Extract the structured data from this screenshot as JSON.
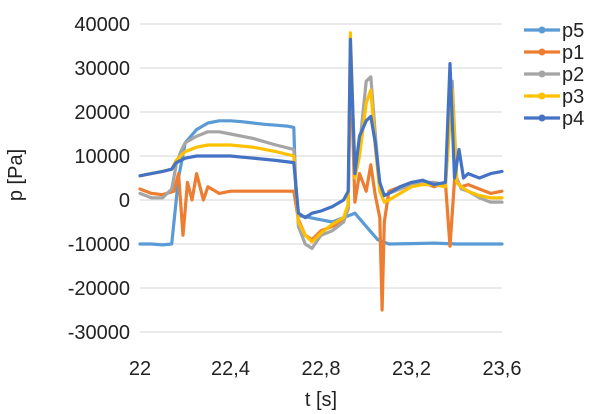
{
  "chart_data": {
    "type": "line",
    "title": "",
    "xlabel": "t [s]",
    "ylabel": "p [Pa]",
    "xlim": [
      22,
      23.6
    ],
    "ylim": [
      -30000,
      40000
    ],
    "xticks": [
      22,
      22.4,
      22.8,
      23.2,
      23.6
    ],
    "xtick_labels": [
      "22",
      "22,4",
      "22,8",
      "23,2",
      "23,6"
    ],
    "yticks": [
      -30000,
      -20000,
      -10000,
      0,
      10000,
      20000,
      30000,
      40000
    ],
    "ytick_labels": [
      "-30000",
      "-20000",
      "-10000",
      "0",
      "10000",
      "20000",
      "30000",
      "40000"
    ],
    "grid": "horizontal",
    "legend_position": "right",
    "series": [
      {
        "name": "p5",
        "color": "#5B9BD5",
        "x": [
          22,
          22.05,
          22.1,
          22.14,
          22.17,
          22.2,
          22.25,
          22.3,
          22.35,
          22.4,
          22.45,
          22.5,
          22.55,
          22.6,
          22.65,
          22.68,
          22.69,
          22.7,
          22.75,
          22.8,
          22.85,
          22.9,
          22.95,
          23.0,
          23.05,
          23.1,
          23.2,
          23.3,
          23.4,
          23.5,
          23.6
        ],
        "y": [
          -10000,
          -10000,
          -10200,
          -10000,
          5000,
          13000,
          16000,
          17500,
          18000,
          18000,
          17800,
          17500,
          17200,
          17000,
          16800,
          16500,
          0,
          -3500,
          -4000,
          -4500,
          -5000,
          -4000,
          -3000,
          -6000,
          -9000,
          -10000,
          -9900,
          -9800,
          -10000,
          -10000,
          -10000
        ]
      },
      {
        "name": "p1",
        "color": "#ED7D31",
        "x": [
          22,
          22.05,
          22.1,
          22.15,
          22.17,
          22.19,
          22.21,
          22.23,
          22.25,
          22.28,
          22.3,
          22.35,
          22.4,
          22.5,
          22.6,
          22.68,
          22.7,
          22.73,
          22.76,
          22.8,
          22.85,
          22.9,
          22.92,
          22.93,
          22.95,
          22.97,
          23.0,
          23.02,
          23.04,
          23.06,
          23.07,
          23.08,
          23.1,
          23.15,
          23.2,
          23.25,
          23.3,
          23.35,
          23.37,
          23.39,
          23.42,
          23.45,
          23.5,
          23.55,
          23.6
        ],
        "y": [
          2500,
          1500,
          1200,
          2000,
          6000,
          -8000,
          4000,
          0,
          6000,
          0,
          3000,
          1500,
          2000,
          2000,
          2000,
          2000,
          -4500,
          -8000,
          -9000,
          -7000,
          -6000,
          -4500,
          -2000,
          33000,
          -500,
          6000,
          2000,
          8000,
          1000,
          -4000,
          -25000,
          -5000,
          2000,
          3000,
          4000,
          4000,
          3000,
          4000,
          -10500,
          4500,
          3000,
          3500,
          2500,
          1500,
          2000
        ]
      },
      {
        "name": "p2",
        "color": "#A5A5A5",
        "x": [
          22,
          22.05,
          22.1,
          22.14,
          22.16,
          22.18,
          22.2,
          22.25,
          22.3,
          22.35,
          22.4,
          22.5,
          22.6,
          22.68,
          22.7,
          22.73,
          22.76,
          22.8,
          22.85,
          22.9,
          22.92,
          22.93,
          22.95,
          22.97,
          23.0,
          23.02,
          23.04,
          23.06,
          23.08,
          23.1,
          23.15,
          23.2,
          23.25,
          23.3,
          23.35,
          23.38,
          23.4,
          23.42,
          23.45,
          23.5,
          23.55,
          23.6
        ],
        "y": [
          1500,
          500,
          500,
          2500,
          8000,
          11000,
          13000,
          14500,
          15500,
          15500,
          15000,
          14000,
          12500,
          11500,
          -6000,
          -10000,
          -11000,
          -8000,
          -7000,
          -5000,
          -2000,
          34000,
          8000,
          12000,
          27000,
          28000,
          15000,
          3000,
          1000,
          1500,
          2500,
          3500,
          4000,
          4000,
          3500,
          27000,
          5000,
          2500,
          2000,
          500,
          -500,
          -500
        ]
      },
      {
        "name": "p3",
        "color": "#FFC000",
        "x": [
          22,
          22.05,
          22.1,
          22.14,
          22.16,
          22.18,
          22.2,
          22.25,
          22.3,
          22.35,
          22.4,
          22.5,
          22.6,
          22.68,
          22.7,
          22.73,
          22.76,
          22.8,
          22.85,
          22.9,
          22.92,
          22.93,
          22.95,
          22.97,
          23.0,
          23.02,
          23.04,
          23.06,
          23.08,
          23.1,
          23.15,
          23.2,
          23.25,
          23.3,
          23.35,
          23.38,
          23.4,
          23.42,
          23.45,
          23.5,
          23.55,
          23.6
        ],
        "y": [
          5500,
          6000,
          6500,
          7000,
          9000,
          10000,
          11000,
          12000,
          12500,
          12500,
          12500,
          12000,
          11000,
          10000,
          -5000,
          -8000,
          -9500,
          -7500,
          -5500,
          -4000,
          -1000,
          38000,
          5000,
          10000,
          22000,
          25000,
          12000,
          2000,
          -500,
          0,
          1500,
          3000,
          3500,
          3500,
          3000,
          25000,
          4000,
          3000,
          2000,
          1000,
          500,
          500
        ]
      },
      {
        "name": "p4",
        "color": "#4472C4",
        "x": [
          22,
          22.05,
          22.1,
          22.14,
          22.16,
          22.18,
          22.2,
          22.25,
          22.3,
          22.35,
          22.4,
          22.5,
          22.6,
          22.68,
          22.7,
          22.73,
          22.76,
          22.8,
          22.85,
          22.9,
          22.92,
          22.93,
          22.95,
          22.97,
          23.0,
          23.02,
          23.04,
          23.06,
          23.08,
          23.1,
          23.15,
          23.2,
          23.25,
          23.3,
          23.35,
          23.37,
          23.39,
          23.41,
          23.43,
          23.45,
          23.5,
          23.55,
          23.6
        ],
        "y": [
          5500,
          6000,
          6500,
          7000,
          8500,
          9000,
          9500,
          10000,
          10000,
          10000,
          10000,
          9500,
          9000,
          8500,
          -3000,
          -4000,
          -3000,
          -2500,
          -1500,
          0,
          2000,
          36500,
          6000,
          14500,
          18000,
          19000,
          13000,
          4000,
          1000,
          1500,
          3000,
          4000,
          4500,
          3500,
          4000,
          31000,
          5000,
          11500,
          5000,
          6000,
          5000,
          6000,
          6500
        ]
      }
    ]
  }
}
